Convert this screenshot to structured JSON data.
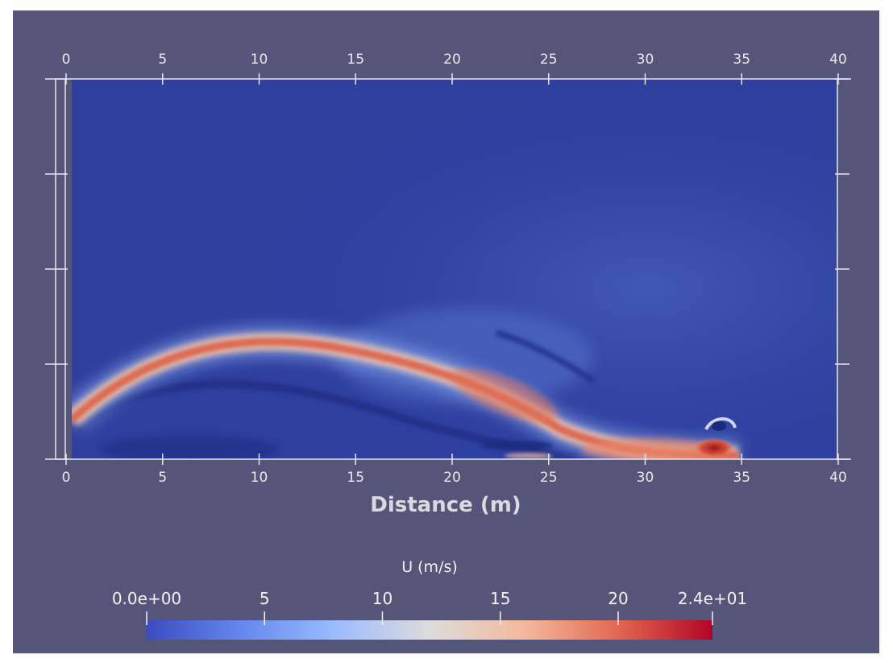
{
  "view": {
    "background_color": "#55557a",
    "frame_color": "#e6e6ee"
  },
  "axes": {
    "x_axis_title": "Distance (m)",
    "top_ticks": [
      "0",
      "5",
      "10",
      "15",
      "20",
      "25",
      "30",
      "35",
      "40"
    ],
    "bottom_ticks": [
      "0",
      "5",
      "10",
      "15",
      "20",
      "25",
      "30",
      "35",
      "40"
    ],
    "x_range_m": [
      0,
      40
    ],
    "left_axis_tick_count": 5,
    "right_axis_tick_count": 5
  },
  "field": {
    "variable": "U",
    "jet_color_peak": "#d8553c",
    "low_color": "#2c3a90"
  },
  "colorbar": {
    "title": "U (m/s)",
    "labels": [
      "0.0e+00",
      "5",
      "10",
      "15",
      "20",
      "2.4e+01"
    ],
    "label_values": [
      0,
      5,
      10,
      15,
      20,
      24
    ],
    "range": [
      0,
      24
    ],
    "color_stops": [
      "#3b4cc0",
      "#7b9ff9",
      "#c0d4f5",
      "#dddcdc",
      "#f2b69c",
      "#e26952",
      "#b40426"
    ]
  }
}
